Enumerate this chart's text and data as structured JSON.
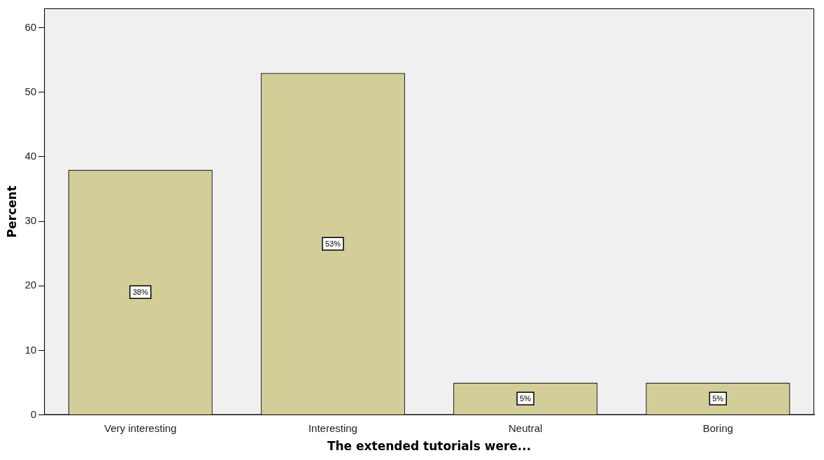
{
  "chart_data": {
    "type": "bar",
    "xlabel": "The extended tutorials were...",
    "ylabel": "Percent",
    "categories": [
      "Very interesting",
      "Interesting",
      "Neutral",
      "Boring"
    ],
    "values": [
      38,
      53,
      5,
      5
    ],
    "value_labels": [
      "38%",
      "53%",
      "5%",
      "5%"
    ],
    "color": "#d3ce97",
    "ylim": [
      0,
      63
    ],
    "yticks": [
      0,
      10,
      20,
      30,
      40,
      50,
      60
    ],
    "grid": false,
    "legend": false
  }
}
